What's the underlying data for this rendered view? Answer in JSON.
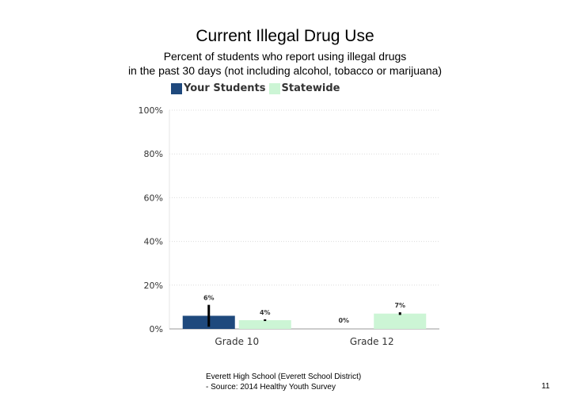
{
  "title": "Current Illegal Drug Use",
  "subtitle_lines": [
    "Percent of students who report using illegal drugs",
    "in the past 30 days (not including alcohol, tobacco or marijuana)"
  ],
  "footer": {
    "line1": "Everett High School (Everett School District)",
    "line2": "- Source: 2014 Healthy Youth Survey"
  },
  "page_number": "11",
  "colors": {
    "your_students": "#1f497d",
    "statewide": "#ccf5d5",
    "error_bar": "#000000"
  },
  "chart_data": {
    "type": "bar",
    "categories": [
      "Grade 10",
      "Grade 12"
    ],
    "series": [
      {
        "name": "Your Students",
        "values": [
          6,
          0
        ],
        "labels": [
          "6%",
          "0%"
        ],
        "ci_low": [
          1,
          null
        ],
        "ci_high": [
          11,
          null
        ]
      },
      {
        "name": "Statewide",
        "values": [
          4,
          7
        ],
        "labels": [
          "4%",
          "7%"
        ],
        "ci_low": [
          3.6,
          6.4
        ],
        "ci_high": [
          4.4,
          7.6
        ]
      }
    ],
    "yticks": [
      "0%",
      "20%",
      "40%",
      "60%",
      "80%",
      "100%"
    ],
    "ylim": [
      0,
      100
    ],
    "grid": true,
    "legend_position": "top-left"
  }
}
